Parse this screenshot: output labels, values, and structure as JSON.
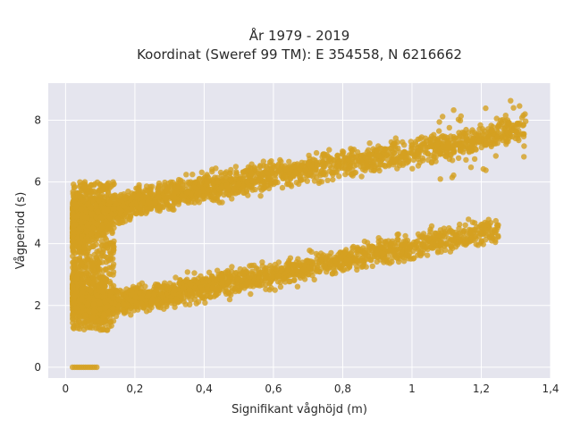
{
  "chart_data": {
    "type": "scatter",
    "title_line1": "År 1979 - 2019",
    "title_line2": "Koordinat (Sweref 99 TM): E 354558, N 6216662",
    "xlabel": "Signifikant våghöjd (m)",
    "ylabel": "Vågperiod (s)",
    "xlim": [
      -0.05,
      1.4
    ],
    "ylim": [
      -0.35,
      9.2
    ],
    "x_ticks": [
      0,
      0.2,
      0.4,
      0.6,
      0.8,
      1,
      1.2,
      1.4
    ],
    "x_tick_labels": [
      "0",
      "0,2",
      "0,4",
      "0,6",
      "0,8",
      "1",
      "1,2",
      "1,4"
    ],
    "y_ticks": [
      0,
      2,
      4,
      6,
      8
    ],
    "y_tick_labels": [
      "0",
      "2",
      "4",
      "6",
      "8"
    ],
    "grid": true,
    "colors": {
      "marker": "#D4A020",
      "plot_bg": "#E5E5EE",
      "grid": "#ffffff"
    },
    "series": [
      {
        "band_upper": {
          "x_range": [
            0.02,
            1.33
          ],
          "center": [
            [
              0.02,
              4.6
            ],
            [
              0.2,
              5.3
            ],
            [
              0.4,
              5.8
            ],
            [
              0.6,
              6.2
            ],
            [
              0.8,
              6.6
            ],
            [
              1.0,
              7.0
            ],
            [
              1.2,
              7.4
            ],
            [
              1.33,
              7.8
            ]
          ],
          "spread": 0.55
        },
        "band_lower": {
          "x_range": [
            0.02,
            1.25
          ],
          "center": [
            [
              0.02,
              2.4
            ],
            [
              0.1,
              2.0
            ],
            [
              0.2,
              2.2
            ],
            [
              0.4,
              2.6
            ],
            [
              0.6,
              3.0
            ],
            [
              0.8,
              3.5
            ],
            [
              1.0,
              3.9
            ],
            [
              1.2,
              4.4
            ]
          ],
          "spread": 0.5
        },
        "zero_cluster": {
          "x_range": [
            0.02,
            0.09
          ],
          "y": 0
        }
      }
    ]
  }
}
